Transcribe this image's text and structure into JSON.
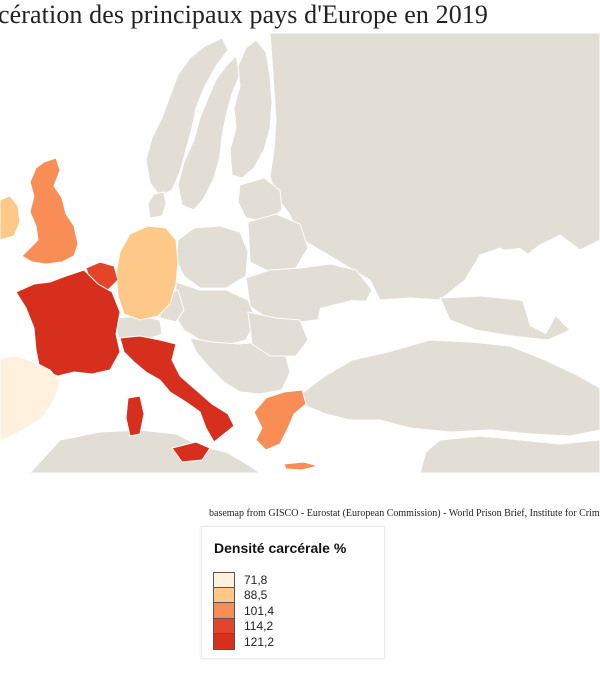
{
  "title": "cération des principaux pays d'Europe en 2019",
  "source": "basemap from GISCO - Eurostat (European Commission) - World Prison Brief, Institute for Crime",
  "legend": {
    "title": "Densité carcérale %",
    "items": [
      {
        "label": "71,8",
        "color": "#fff1dd"
      },
      {
        "label": "88,5",
        "color": "#fdc888"
      },
      {
        "label": "101,4",
        "color": "#f88d55"
      },
      {
        "label": "114,2",
        "color": "#e3452a"
      },
      {
        "label": "121,2",
        "color": "#d62f1e"
      }
    ]
  },
  "map": {
    "colors": {
      "sea": "#ffffff",
      "land": "#e2ded6",
      "border": "#ffffff"
    },
    "countries": [
      {
        "name": "Espagne",
        "value": "71,8"
      },
      {
        "name": "Allemagne",
        "value": "88,5"
      },
      {
        "name": "Irlande",
        "value": "88,5"
      },
      {
        "name": "Royaume-Uni",
        "value": "101,4"
      },
      {
        "name": "Grèce",
        "value": "101,4"
      },
      {
        "name": "Belgique",
        "value": "114,2"
      },
      {
        "name": "France",
        "value": "121,2"
      },
      {
        "name": "Italie",
        "value": "121,2"
      }
    ]
  }
}
